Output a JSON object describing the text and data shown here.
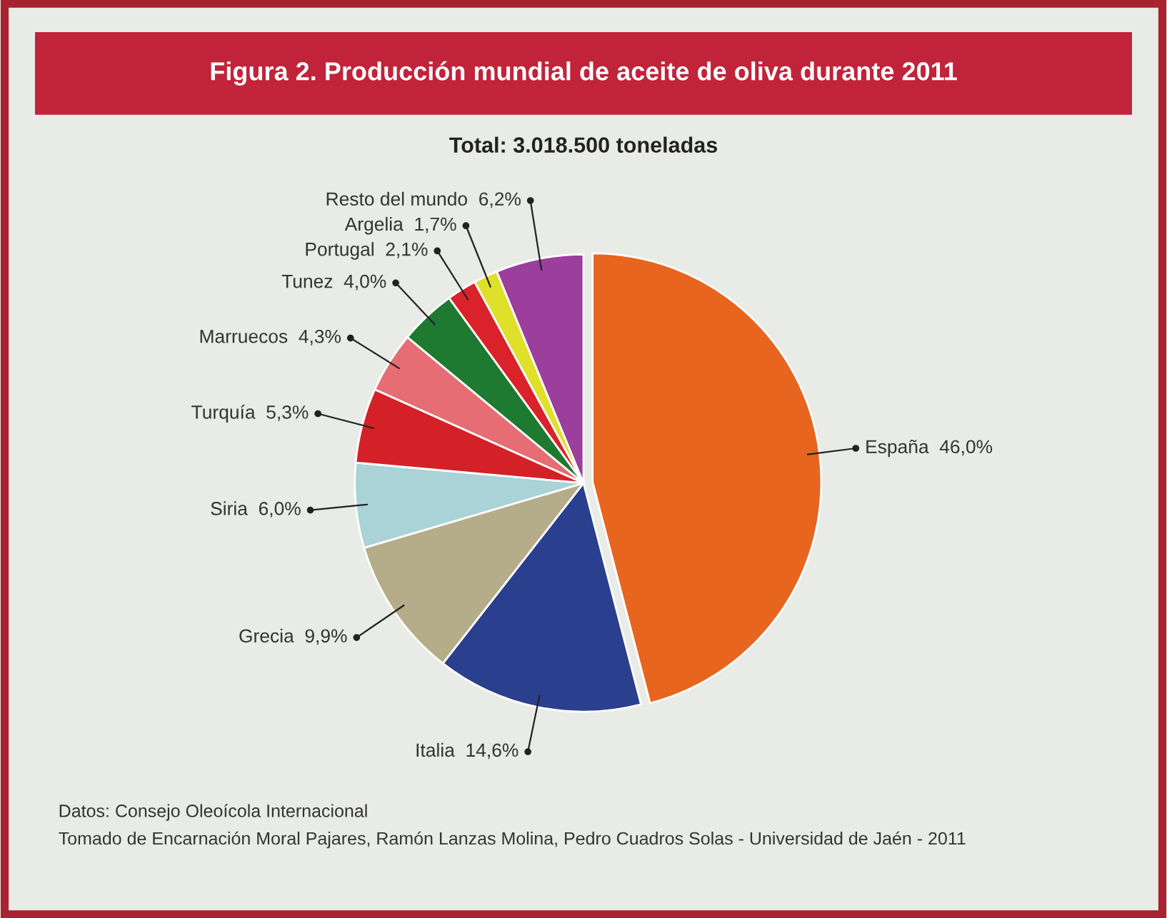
{
  "chart_data": {
    "type": "pie",
    "title": "Figura 2. Producción mundial de aceite de oliva durante 2011",
    "subtitle": "Total: 3.018.500 toneladas",
    "categories": [
      "España",
      "Italia",
      "Grecia",
      "Siria",
      "Turquía",
      "Marruecos",
      "Tunez",
      "Portugal",
      "Argelia",
      "Resto del mundo"
    ],
    "values": [
      46.0,
      14.6,
      9.9,
      6.0,
      5.3,
      4.3,
      4.0,
      2.1,
      1.7,
      6.2
    ],
    "value_labels": [
      "46,0%",
      "14,6%",
      "9,9%",
      "6,0%",
      "5,3%",
      "4,3%",
      "4,0%",
      "2,1%",
      "1,7%",
      "6,2%"
    ],
    "colors": [
      "#e8651f",
      "#2b3f8f",
      "#b5ad8a",
      "#a9d3d6",
      "#d42127",
      "#e56d73",
      "#1e7a30",
      "#d9222a",
      "#dfe02a",
      "#9b3e9c"
    ],
    "legend": false,
    "annotations": [
      "Datos: Consejo Oleoícola Internacional",
      "Tomado de Encarnación Moral Pajares, Ramón Lanzas Molina, Pedro Cuadros Solas - Universidad de Jaén - 2011"
    ]
  }
}
